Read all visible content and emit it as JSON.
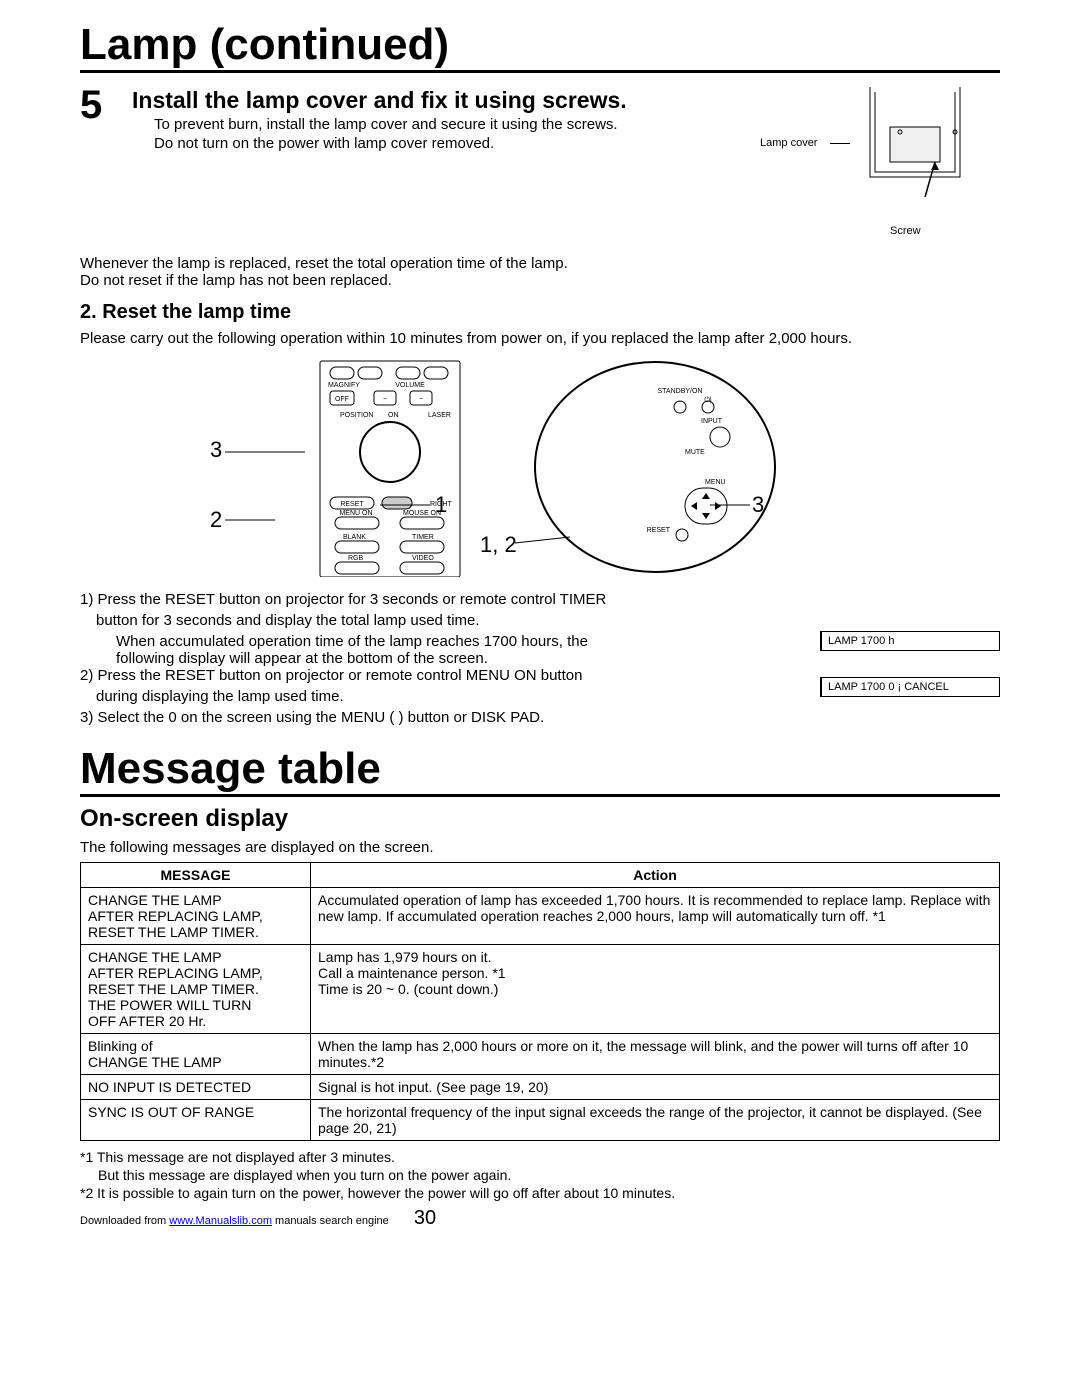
{
  "title": "Lamp (continued)",
  "step": {
    "number": "5",
    "heading": "Install the lamp cover and fix it using screws.",
    "line1": "To prevent burn, install the lamp cover and secure it using the screws.",
    "line2": "Do not turn on the power with lamp cover removed.",
    "diag_label1": "Lamp cover",
    "diag_label2": "Screw"
  },
  "reset_note": {
    "line1": "Whenever the lamp is replaced, reset the total operation time of the lamp.",
    "line2": "Do not reset if the lamp has not been replaced."
  },
  "reset": {
    "heading": "2. Reset the lamp time",
    "intro": "Please carry out the following operation within 10 minutes from power on, if you replaced the lamp after 2,000 hours."
  },
  "diagram": {
    "callout_3a": "3",
    "callout_2": "2",
    "callout_1": "1",
    "callout_12": "1, 2",
    "callout_3b": "3",
    "remote_labels": {
      "magnify": "MAGNIFY",
      "volume": "VOLUME",
      "off": "OFF",
      "position": "POSITION",
      "on": "ON",
      "laser": "LASER",
      "reset": "RESET",
      "right": "RIGHT",
      "menu_on": "MENU ON",
      "mouse_on": "MOUSE ON",
      "blank": "BLANK",
      "timer": "TIMER",
      "rgb": "RGB",
      "video": "VIDEO"
    },
    "panel_labels": {
      "standby": "STANDBY/ON",
      "input": "INPUT",
      "mute": "MUTE",
      "menu": "MENU",
      "reset": "RESET"
    }
  },
  "steps": {
    "s1a": "1) Press the RESET button on projector for 3 seconds or remote control TIMER",
    "s1b": "button for 3 seconds and display the total lamp used time.",
    "s1c": "When accumulated operation time of the lamp reaches 1700 hours, the",
    "s1d": "following display will appear at the bottom of the screen.",
    "s2a": "2) Press the RESET button on projector or remote control MENU ON button",
    "s2b": "during displaying the lamp used time.",
    "s3": "3) Select the  0  on the screen using the MENU (        ) button or DISK PAD.",
    "box1": "LAMP 1700 h",
    "box2": "LAMP 1700      0 ¡ CANCEL"
  },
  "messageTable": {
    "title": "Message table",
    "subtitle": "On-screen display",
    "intro": "The following messages are displayed on the screen.",
    "columns": [
      "MESSAGE",
      "Action"
    ],
    "rows": [
      [
        "CHANGE THE LAMP\nAFTER REPLACING LAMP,\nRESET THE LAMP TIMER.",
        "Accumulated operation of lamp has exceeded 1,700 hours. It is recommended to replace lamp. Replace with new lamp. If accumulated operation reaches 2,000 hours, lamp will automatically turn off. *1"
      ],
      [
        "CHANGE THE LAMP\nAFTER REPLACING LAMP,\nRESET THE LAMP TIMER.\nTHE POWER WILL TURN\nOFF AFTER 20 Hr.",
        "Lamp has 1,979 hours on it.\nCall a maintenance person. *1\nTime is 20 ~ 0. (count down.)"
      ],
      [
        "Blinking of\nCHANGE THE LAMP",
        "When the lamp has 2,000 hours or more on it, the message will blink, and the power will turns off after 10 minutes.*2"
      ],
      [
        "NO INPUT IS DETECTED",
        "Signal is hot input. (See page 19, 20)"
      ],
      [
        "SYNC IS OUT OF RANGE",
        "The horizontal frequency of the input signal exceeds the range of the projector, it cannot be displayed. (See page 20, 21)"
      ]
    ]
  },
  "notes": {
    "n1a": "*1 This message are not displayed after 3 minutes.",
    "n1b": "But this message are displayed when you turn on the power again.",
    "n2": "*2 It is possible to again turn on the power, however the power will go off after about 10 minutes."
  },
  "footer": {
    "prefix": "Downloaded from ",
    "link_text": "www.Manualslib.com",
    "suffix": " manuals search engine",
    "page": "30"
  }
}
